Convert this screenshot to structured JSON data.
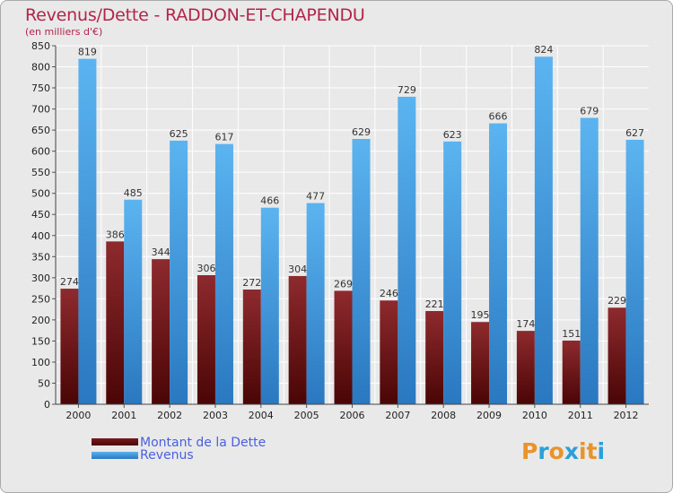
{
  "chart_data": {
    "type": "bar",
    "title": "Revenus/Dette - RADDON-ET-CHAPENDU",
    "subtitle": "(en milliers d'€)",
    "categories": [
      "2000",
      "2001",
      "2002",
      "2003",
      "2004",
      "2005",
      "2006",
      "2007",
      "2008",
      "2009",
      "2010",
      "2011",
      "2012"
    ],
    "series": [
      {
        "name": "Montant de la Dette",
        "color": "#7a1a1e",
        "values": [
          274,
          386,
          344,
          306,
          272,
          304,
          269,
          246,
          221,
          195,
          174,
          151,
          229
        ]
      },
      {
        "name": "Revenus",
        "color": "#4aa3e6",
        "values": [
          819,
          485,
          625,
          617,
          466,
          477,
          629,
          729,
          623,
          666,
          824,
          679,
          627
        ]
      }
    ],
    "ylim": [
      0,
      850
    ],
    "yticks": [
      0,
      50,
      100,
      150,
      200,
      250,
      300,
      350,
      400,
      450,
      500,
      550,
      600,
      650,
      700,
      750,
      800,
      850
    ],
    "grid": true,
    "legend": "bottom-left"
  },
  "logo": {
    "letters": [
      "P",
      "r",
      "o",
      "x",
      "i",
      "t",
      "i"
    ],
    "colors": [
      "#e8942a",
      "#2a9fd8",
      "#e8942a",
      "#2a9fd8",
      "#e8942a",
      "#e8942a",
      "#2a9fd8"
    ]
  }
}
